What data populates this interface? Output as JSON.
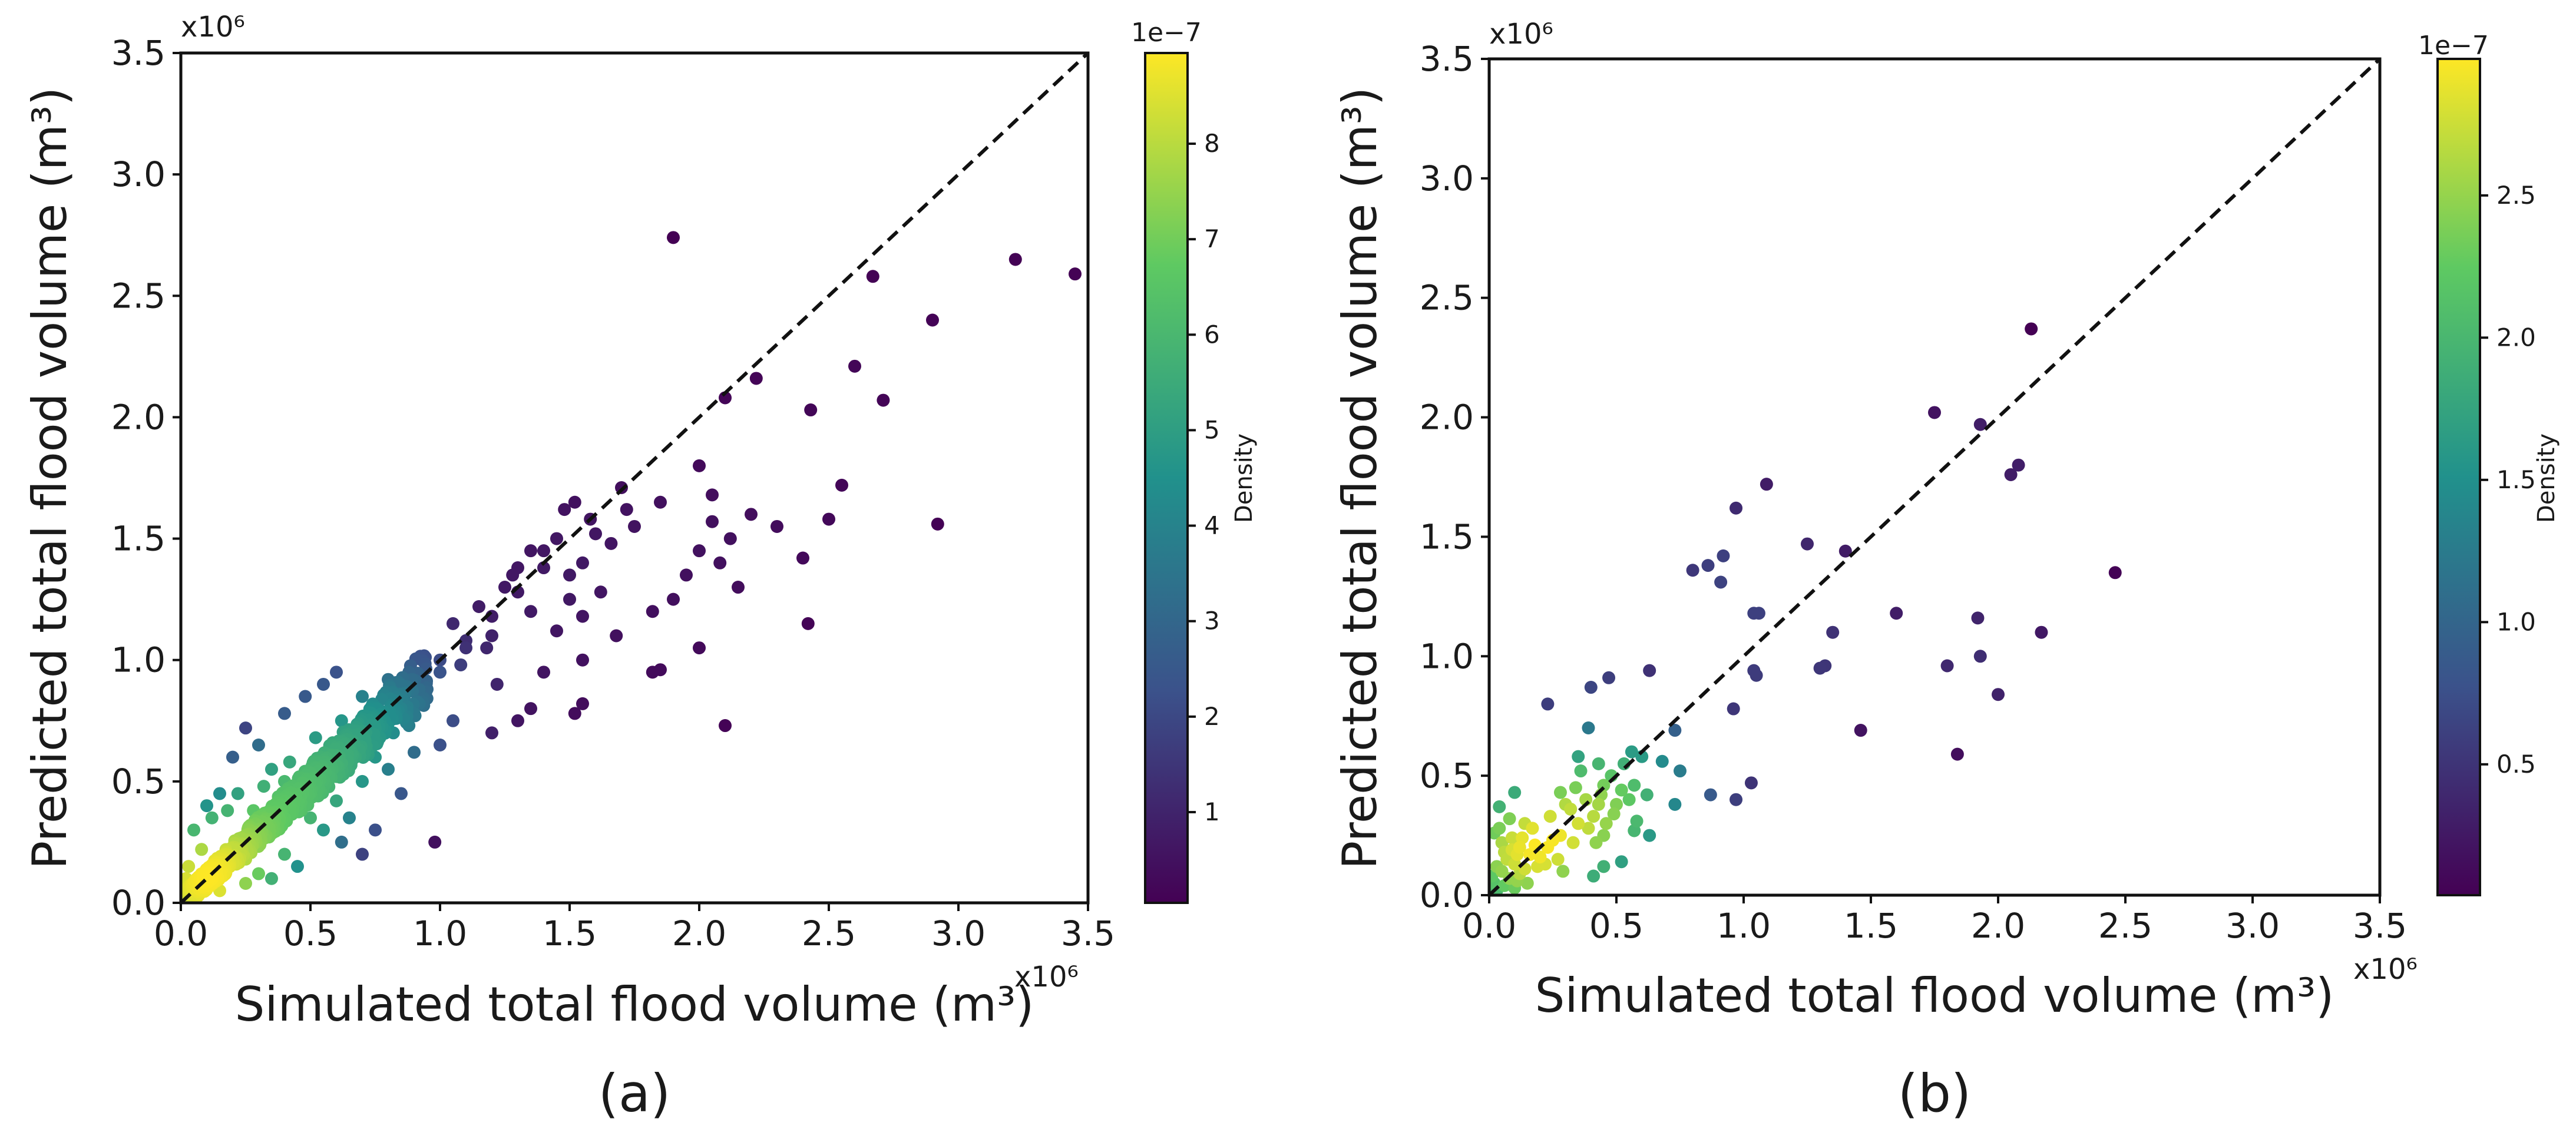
{
  "figure": {
    "panels": [
      {
        "panel_label": "(a)",
        "colorbar": {
          "label": "Density",
          "exponent": "1e−7",
          "ticks": [
            1,
            2,
            3,
            4,
            5,
            6,
            7,
            8
          ],
          "range": [
            0.05,
            8.95
          ],
          "colormap": [
            "#440154",
            "#3b528b",
            "#21918c",
            "#5ec962",
            "#fde725"
          ]
        }
      },
      {
        "panel_label": "(b)",
        "colorbar": {
          "label": "Density",
          "exponent": "1e−7",
          "ticks": [
            0.5,
            1.0,
            1.5,
            2.0,
            2.5
          ],
          "range": [
            0.04,
            2.98
          ],
          "colormap": [
            "#440154",
            "#3b528b",
            "#21918c",
            "#5ec962",
            "#fde725"
          ]
        }
      }
    ]
  },
  "chart_data": [
    {
      "type": "scatter",
      "panel": "(a)",
      "xlabel": "Simulated total flood volume (m³)",
      "ylabel": "Predicted total flood volume (m³)",
      "x_exponent": "x10⁶",
      "y_exponent": "x10⁶",
      "xlim": [
        0,
        3.5
      ],
      "ylim": [
        0,
        3.5
      ],
      "xticks": [
        "0.0",
        "0.5",
        "1.0",
        "1.5",
        "2.0",
        "2.5",
        "3.0",
        "3.5"
      ],
      "yticks": [
        "0.0",
        "0.5",
        "1.0",
        "1.5",
        "2.0",
        "2.5",
        "3.0",
        "3.5"
      ],
      "reference_line": "y = x (dashed)",
      "color_encoding": "point density",
      "points": [
        [
          1.9,
          2.74
        ],
        [
          3.22,
          2.65
        ],
        [
          3.45,
          2.59
        ],
        [
          2.67,
          2.58
        ],
        [
          2.9,
          2.4
        ],
        [
          2.6,
          2.21
        ],
        [
          2.22,
          2.16
        ],
        [
          2.1,
          2.08
        ],
        [
          2.71,
          2.07
        ],
        [
          2.43,
          2.03
        ],
        [
          2.0,
          1.8
        ],
        [
          2.55,
          1.72
        ],
        [
          1.7,
          1.71
        ],
        [
          2.05,
          1.68
        ],
        [
          1.52,
          1.65
        ],
        [
          1.85,
          1.65
        ],
        [
          1.48,
          1.62
        ],
        [
          1.72,
          1.62
        ],
        [
          2.2,
          1.6
        ],
        [
          1.58,
          1.58
        ],
        [
          2.5,
          1.58
        ],
        [
          2.05,
          1.57
        ],
        [
          2.92,
          1.56
        ],
        [
          1.75,
          1.55
        ],
        [
          2.3,
          1.55
        ],
        [
          1.6,
          1.52
        ],
        [
          1.45,
          1.5
        ],
        [
          2.12,
          1.5
        ],
        [
          1.66,
          1.48
        ],
        [
          2.0,
          1.45
        ],
        [
          1.4,
          1.45
        ],
        [
          2.4,
          1.42
        ],
        [
          1.55,
          1.4
        ],
        [
          2.08,
          1.4
        ],
        [
          1.3,
          1.38
        ],
        [
          1.95,
          1.35
        ],
        [
          1.5,
          1.35
        ],
        [
          2.15,
          1.3
        ],
        [
          1.25,
          1.3
        ],
        [
          1.62,
          1.28
        ],
        [
          1.9,
          1.25
        ],
        [
          1.5,
          1.25
        ],
        [
          1.35,
          1.2
        ],
        [
          1.55,
          1.18
        ],
        [
          2.42,
          1.15
        ],
        [
          1.2,
          1.1
        ],
        [
          1.68,
          1.1
        ],
        [
          1.45,
          1.12
        ],
        [
          1.82,
          1.2
        ],
        [
          2.0,
          1.05
        ],
        [
          1.1,
          1.05
        ],
        [
          1.55,
          1.0
        ],
        [
          1.85,
          0.96
        ],
        [
          1.0,
          1.0
        ],
        [
          1.82,
          0.95
        ],
        [
          1.4,
          0.95
        ],
        [
          1.22,
          0.9
        ],
        [
          1.55,
          0.82
        ],
        [
          1.35,
          0.8
        ],
        [
          1.52,
          0.78
        ],
        [
          1.05,
          0.75
        ],
        [
          1.3,
          0.75
        ],
        [
          2.1,
          0.73
        ],
        [
          0.88,
          0.73
        ],
        [
          1.2,
          0.7
        ],
        [
          1.0,
          0.65
        ],
        [
          0.9,
          0.62
        ],
        [
          0.75,
          0.6
        ],
        [
          0.7,
          0.5
        ],
        [
          0.98,
          0.25
        ],
        [
          0.25,
          0.72
        ],
        [
          0.3,
          0.65
        ],
        [
          0.2,
          0.6
        ],
        [
          0.48,
          0.85
        ],
        [
          0.55,
          0.9
        ],
        [
          0.6,
          0.95
        ],
        [
          0.4,
          0.78
        ],
        [
          0.35,
          0.55
        ],
        [
          0.45,
          0.4
        ],
        [
          0.5,
          0.35
        ],
        [
          0.55,
          0.3
        ],
        [
          0.62,
          0.25
        ],
        [
          0.7,
          0.2
        ],
        [
          0.4,
          0.2
        ],
        [
          0.3,
          0.12
        ],
        [
          0.25,
          0.08
        ],
        [
          0.45,
          0.15
        ],
        [
          0.35,
          0.1
        ],
        [
          0.6,
          0.42
        ],
        [
          0.8,
          0.55
        ],
        [
          0.85,
          0.45
        ],
        [
          0.65,
          0.35
        ],
        [
          0.75,
          0.3
        ],
        [
          0.15,
          0.45
        ],
        [
          0.1,
          0.4
        ],
        [
          0.12,
          0.35
        ],
        [
          0.05,
          0.3
        ],
        [
          0.18,
          0.38
        ],
        [
          0.22,
          0.45
        ],
        [
          0.08,
          0.22
        ],
        [
          0.03,
          0.15
        ],
        [
          0.02,
          0.1
        ],
        [
          0.15,
          0.05
        ],
        [
          0.25,
          0.18
        ],
        [
          0.4,
          0.5
        ],
        [
          0.55,
          0.55
        ],
        [
          0.65,
          0.65
        ],
        [
          0.75,
          0.72
        ],
        [
          0.85,
          0.8
        ],
        [
          0.95,
          0.88
        ],
        [
          1.0,
          0.95
        ],
        [
          1.1,
          1.08
        ],
        [
          1.2,
          1.18
        ],
        [
          1.3,
          1.28
        ],
        [
          1.4,
          1.38
        ],
        [
          0.9,
          0.78
        ],
        [
          0.7,
          0.85
        ],
        [
          0.8,
          0.92
        ],
        [
          1.05,
          1.15
        ],
        [
          1.15,
          1.22
        ],
        [
          1.28,
          1.35
        ],
        [
          1.35,
          1.45
        ],
        [
          0.62,
          0.75
        ],
        [
          0.52,
          0.68
        ],
        [
          0.42,
          0.58
        ],
        [
          0.32,
          0.48
        ],
        [
          0.28,
          0.38
        ],
        [
          0.5,
          0.45
        ],
        [
          0.6,
          0.52
        ],
        [
          0.72,
          0.62
        ],
        [
          0.82,
          0.7
        ],
        [
          0.92,
          0.82
        ],
        [
          0.88,
          0.95
        ],
        [
          1.08,
          0.98
        ],
        [
          1.18,
          1.05
        ]
      ],
      "dense_band": {
        "x_from": 0.0,
        "x_to": 0.95,
        "slope": 0.98,
        "note": "points concentrated along y = x with highest density near the origin"
      }
    },
    {
      "type": "scatter",
      "panel": "(b)",
      "xlabel": "Simulated total flood volume (m³)",
      "ylabel": "Predicted total flood volume (m³)",
      "x_exponent": "x10⁶",
      "y_exponent": "x10⁶",
      "xlim": [
        0,
        3.5
      ],
      "ylim": [
        0,
        3.5
      ],
      "xticks": [
        "0.0",
        "0.5",
        "1.0",
        "1.5",
        "2.0",
        "2.5",
        "3.0",
        "3.5"
      ],
      "yticks": [
        "0.0",
        "0.5",
        "1.0",
        "1.5",
        "2.0",
        "2.5",
        "3.0",
        "3.5"
      ],
      "reference_line": "y = x (dashed)",
      "color_encoding": "point density",
      "points": [
        [
          2.13,
          2.37
        ],
        [
          1.75,
          2.02
        ],
        [
          1.93,
          1.97
        ],
        [
          2.08,
          1.8
        ],
        [
          2.05,
          1.76
        ],
        [
          1.09,
          1.72
        ],
        [
          0.97,
          1.62
        ],
        [
          1.25,
          1.47
        ],
        [
          1.4,
          1.44
        ],
        [
          0.92,
          1.42
        ],
        [
          0.86,
          1.38
        ],
        [
          0.8,
          1.36
        ],
        [
          2.46,
          1.35
        ],
        [
          0.91,
          1.31
        ],
        [
          1.04,
          1.18
        ],
        [
          1.06,
          1.18
        ],
        [
          1.6,
          1.18
        ],
        [
          1.92,
          1.16
        ],
        [
          1.35,
          1.1
        ],
        [
          2.17,
          1.1
        ],
        [
          1.93,
          1.0
        ],
        [
          1.32,
          0.96
        ],
        [
          1.8,
          0.96
        ],
        [
          1.3,
          0.95
        ],
        [
          1.04,
          0.94
        ],
        [
          1.05,
          0.92
        ],
        [
          0.63,
          0.94
        ],
        [
          0.47,
          0.91
        ],
        [
          0.4,
          0.87
        ],
        [
          2.0,
          0.84
        ],
        [
          0.23,
          0.8
        ],
        [
          0.96,
          0.78
        ],
        [
          0.39,
          0.7
        ],
        [
          1.46,
          0.69
        ],
        [
          0.73,
          0.69
        ],
        [
          0.56,
          0.6
        ],
        [
          1.84,
          0.59
        ],
        [
          0.68,
          0.56
        ],
        [
          0.75,
          0.52
        ],
        [
          0.6,
          0.58
        ],
        [
          0.53,
          0.55
        ],
        [
          0.35,
          0.58
        ],
        [
          0.43,
          0.55
        ],
        [
          0.48,
          0.5
        ],
        [
          1.03,
          0.47
        ],
        [
          0.87,
          0.42
        ],
        [
          0.97,
          0.4
        ],
        [
          0.57,
          0.46
        ],
        [
          0.52,
          0.44
        ],
        [
          0.45,
          0.46
        ],
        [
          0.55,
          0.4
        ],
        [
          0.62,
          0.42
        ],
        [
          0.38,
          0.4
        ],
        [
          0.3,
          0.38
        ],
        [
          0.24,
          0.33
        ],
        [
          0.28,
          0.43
        ],
        [
          0.34,
          0.45
        ],
        [
          0.43,
          0.38
        ],
        [
          0.73,
          0.38
        ],
        [
          0.41,
          0.33
        ],
        [
          0.49,
          0.34
        ],
        [
          0.57,
          0.27
        ],
        [
          0.45,
          0.25
        ],
        [
          0.42,
          0.22
        ],
        [
          0.39,
          0.28
        ],
        [
          0.58,
          0.31
        ],
        [
          0.25,
          0.23
        ],
        [
          0.28,
          0.25
        ],
        [
          0.23,
          0.2
        ],
        [
          0.52,
          0.14
        ],
        [
          0.63,
          0.25
        ],
        [
          0.41,
          0.08
        ],
        [
          0.45,
          0.12
        ],
        [
          0.1,
          0.43
        ],
        [
          0.04,
          0.37
        ],
        [
          0.08,
          0.32
        ],
        [
          0.14,
          0.3
        ],
        [
          0.17,
          0.28
        ],
        [
          0.02,
          0.26
        ],
        [
          0.05,
          0.22
        ],
        [
          0.09,
          0.24
        ],
        [
          0.12,
          0.2
        ],
        [
          0.18,
          0.21
        ],
        [
          0.16,
          0.17
        ],
        [
          0.07,
          0.15
        ],
        [
          0.1,
          0.13
        ],
        [
          0.03,
          0.12
        ],
        [
          0.05,
          0.1
        ],
        [
          0.01,
          0.08
        ],
        [
          0.08,
          0.07
        ],
        [
          0.12,
          0.09
        ],
        [
          0.14,
          0.11
        ],
        [
          0.02,
          0.05
        ],
        [
          0.06,
          0.04
        ],
        [
          0.03,
          0.02
        ],
        [
          0.1,
          0.03
        ],
        [
          0.2,
          0.16
        ],
        [
          0.22,
          0.13
        ],
        [
          0.15,
          0.05
        ],
        [
          0.11,
          0.17
        ],
        [
          0.32,
          0.36
        ],
        [
          0.36,
          0.52
        ],
        [
          0.44,
          0.42
        ],
        [
          0.5,
          0.38
        ],
        [
          0.35,
          0.3
        ],
        [
          0.46,
          0.3
        ],
        [
          0.27,
          0.15
        ],
        [
          0.33,
          0.22
        ],
        [
          0.29,
          0.1
        ],
        [
          0.06,
          0.18
        ],
        [
          0.04,
          0.28
        ],
        [
          0.13,
          0.24
        ],
        [
          0.19,
          0.12
        ],
        [
          0.09,
          0.19
        ],
        [
          0.11,
          0.06
        ]
      ]
    }
  ]
}
